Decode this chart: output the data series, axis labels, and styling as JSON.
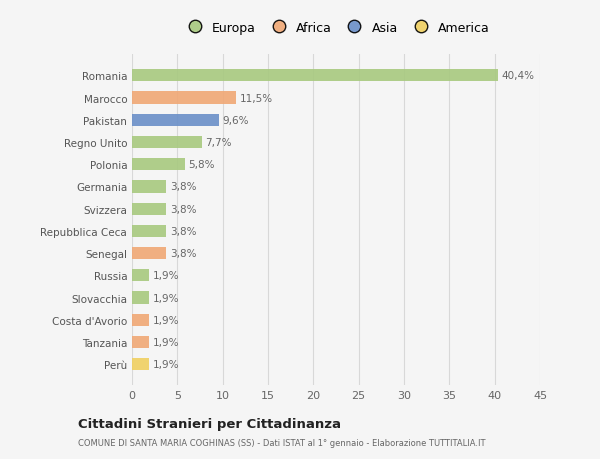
{
  "countries": [
    "Romania",
    "Marocco",
    "Pakistan",
    "Regno Unito",
    "Polonia",
    "Germania",
    "Svizzera",
    "Repubblica Ceca",
    "Senegal",
    "Russia",
    "Slovacchia",
    "Costa d'Avorio",
    "Tanzania",
    "Perù"
  ],
  "values": [
    40.4,
    11.5,
    9.6,
    7.7,
    5.8,
    3.8,
    3.8,
    3.8,
    3.8,
    1.9,
    1.9,
    1.9,
    1.9,
    1.9
  ],
  "labels": [
    "40,4%",
    "11,5%",
    "9,6%",
    "7,7%",
    "5,8%",
    "3,8%",
    "3,8%",
    "3,8%",
    "3,8%",
    "1,9%",
    "1,9%",
    "1,9%",
    "1,9%",
    "1,9%"
  ],
  "continents": [
    "Europa",
    "Africa",
    "Asia",
    "Europa",
    "Europa",
    "Europa",
    "Europa",
    "Europa",
    "Africa",
    "Europa",
    "Europa",
    "Africa",
    "Africa",
    "America"
  ],
  "colors": {
    "Europa": "#a8c97f",
    "Africa": "#f0a875",
    "Asia": "#6a8fc8",
    "America": "#f0d060"
  },
  "legend_order": [
    "Europa",
    "Africa",
    "Asia",
    "America"
  ],
  "legend_colors": {
    "Europa": "#a8c97f",
    "Africa": "#f0a875",
    "Asia": "#6a8fc8",
    "America": "#f0d060"
  },
  "xlim": [
    0,
    45
  ],
  "xticks": [
    0,
    5,
    10,
    15,
    20,
    25,
    30,
    35,
    40,
    45
  ],
  "title": "Cittadini Stranieri per Cittadinanza",
  "subtitle": "COMUNE DI SANTA MARIA COGHINAS (SS) - Dati ISTAT al 1° gennaio - Elaborazione TUTTITALIA.IT",
  "background_color": "#f5f5f5",
  "grid_color": "#d8d8d8",
  "bar_height": 0.55,
  "label_fontsize": 7.5,
  "ytick_fontsize": 7.5,
  "xtick_fontsize": 8
}
